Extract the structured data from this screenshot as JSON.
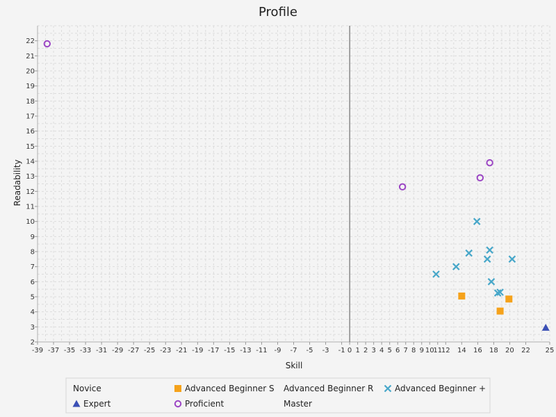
{
  "chart_data": {
    "type": "scatter",
    "title": "Profile",
    "xlabel": "Skill",
    "ylabel": "Readability",
    "xlim": [
      -39,
      25
    ],
    "ylim": [
      2,
      23
    ],
    "x_tick_labels": [
      "-39",
      "-37",
      "-35",
      "-33",
      "-31",
      "-29",
      "-27",
      "-25",
      "-23",
      "-21",
      "-19",
      "-17",
      "-15",
      "-13",
      "-11",
      "-9",
      "-7",
      "-5",
      "-3",
      "-1",
      "0",
      "1",
      "2",
      "3",
      "4",
      "5",
      "6",
      "7",
      "8",
      "9",
      "10",
      "11",
      "12",
      "14",
      "16",
      "18",
      "20",
      "22",
      "25"
    ],
    "y_ticks": [
      2,
      3,
      4,
      5,
      6,
      7,
      8,
      9,
      10,
      11,
      12,
      13,
      14,
      15,
      16,
      17,
      18,
      19,
      20,
      21,
      22
    ],
    "grid": true,
    "legend_position": "bottom",
    "series": [
      {
        "name": "Novice",
        "marker": "none",
        "color": "#e8453c",
        "points": []
      },
      {
        "name": "Advanced Beginner S",
        "marker": "square",
        "color": "#f5a21b",
        "points": [
          [
            14.0,
            5.05
          ],
          [
            19.9,
            4.85
          ],
          [
            18.8,
            4.05
          ]
        ]
      },
      {
        "name": "Advanced Beginner R",
        "marker": "none",
        "color": "#3a7d44",
        "points": []
      },
      {
        "name": "Advanced Beginner +",
        "marker": "x",
        "color": "#47a7c9",
        "points": [
          [
            15.9,
            10.0
          ],
          [
            17.5,
            8.1
          ],
          [
            14.9,
            7.9
          ],
          [
            17.2,
            7.5
          ],
          [
            20.3,
            7.5
          ],
          [
            13.3,
            7.0
          ],
          [
            10.8,
            6.5
          ],
          [
            17.7,
            6.0
          ],
          [
            18.5,
            5.25
          ],
          [
            18.8,
            5.3
          ]
        ]
      },
      {
        "name": "Expert",
        "marker": "triangle",
        "color": "#3b50b5",
        "points": [
          [
            24.5,
            2.95
          ]
        ]
      },
      {
        "name": "Proficient",
        "marker": "circle",
        "color": "#9b45c4",
        "points": [
          [
            -37.8,
            21.8
          ],
          [
            6.6,
            12.3
          ],
          [
            16.3,
            12.9
          ],
          [
            17.5,
            13.9
          ]
        ]
      },
      {
        "name": "Master",
        "marker": "none",
        "color": "#888888",
        "points": []
      }
    ]
  }
}
